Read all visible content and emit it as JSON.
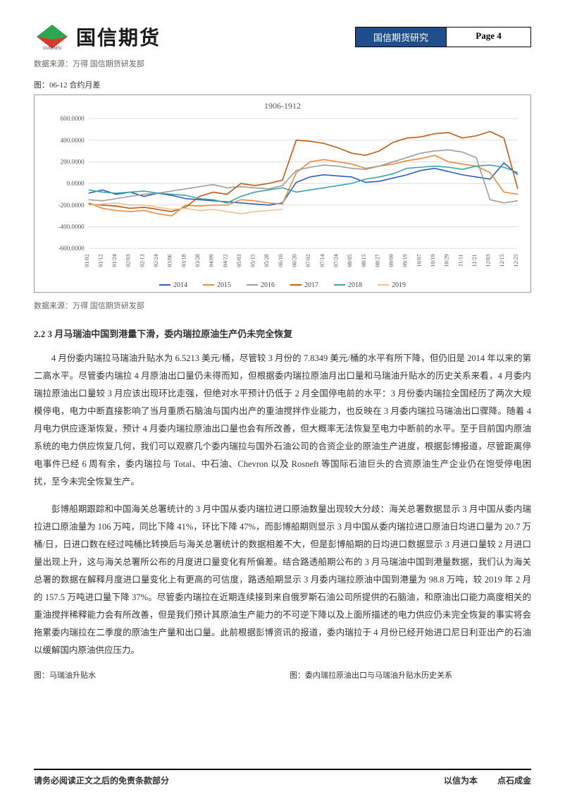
{
  "header": {
    "logo_text": "国信期货",
    "logo_sub": "GUOSEN",
    "research_box": "国信期货研究",
    "page_box": "Page   4"
  },
  "source_label_1": "数据来源：万得 国信期货研发部",
  "source_label_2": "数据来源：万得 国信期货研发部",
  "chart1": {
    "caption": "图：06-12 合约月差",
    "title": "1906-1912",
    "type": "line",
    "background_color": "#ffffff",
    "grid_color": "#dddddd",
    "axis_color": "#bfbfbf",
    "line_width": 1.6,
    "ylim": [
      -600,
      600
    ],
    "ytick_step": 200,
    "ytick_labels": [
      "-600.0000",
      "-400.0000",
      "-200.0000",
      "0.0000",
      "200.0000",
      "400.0000",
      "600.0000"
    ],
    "x_labels": [
      "01/02",
      "01/12",
      "01/24",
      "02/03",
      "02/13",
      "02/24",
      "03/06",
      "03/18",
      "03/28",
      "04/09",
      "04/22",
      "05/03",
      "05/15",
      "05/28",
      "06/10",
      "06/20",
      "07/02",
      "07/14",
      "07/24",
      "08/05",
      "08/15",
      "08/27",
      "09/09",
      "09/19",
      "10/07",
      "10/19",
      "10/29",
      "11/11",
      "11/21",
      "12/03",
      "12/15",
      "12/25"
    ],
    "series": [
      {
        "name": "2014",
        "color": "#2e5fc2",
        "values": [
          -90,
          -60,
          -100,
          -80,
          -120,
          -90,
          -110,
          -140,
          -150,
          -160,
          -170,
          -180,
          -190,
          -200,
          -180,
          10,
          60,
          80,
          70,
          60,
          10,
          20,
          50,
          80,
          120,
          140,
          110,
          80,
          60,
          40,
          190,
          80
        ]
      },
      {
        "name": "2015",
        "color": "#ed8b3b",
        "values": [
          -180,
          -230,
          -250,
          -260,
          -250,
          -280,
          -300,
          -200,
          -210,
          -200,
          -200,
          -150,
          -160,
          -180,
          -190,
          100,
          200,
          220,
          200,
          180,
          140,
          160,
          180,
          210,
          230,
          260,
          200,
          180,
          160,
          100,
          -80,
          -100
        ]
      },
      {
        "name": "2016",
        "color": "#9e9e9e",
        "values": [
          -150,
          -160,
          -140,
          -120,
          -100,
          -90,
          -70,
          -50,
          -30,
          -10,
          -40,
          -30,
          -40,
          -50,
          -20,
          120,
          150,
          170,
          160,
          140,
          130,
          160,
          200,
          240,
          280,
          300,
          310,
          290,
          240,
          -150,
          -180,
          -160
        ]
      },
      {
        "name": "2017",
        "color": "#c55a11",
        "values": [
          -190,
          -200,
          -210,
          -230,
          -220,
          -240,
          -260,
          -220,
          -120,
          -80,
          -100,
          0,
          -20,
          0,
          30,
          400,
          390,
          370,
          330,
          280,
          260,
          300,
          380,
          420,
          430,
          460,
          470,
          420,
          440,
          480,
          420,
          -50
        ]
      },
      {
        "name": "2018",
        "color": "#3aa6a6",
        "values": [
          -60,
          -80,
          -90,
          -80,
          -70,
          -90,
          -100,
          -110,
          -140,
          -150,
          -180,
          -120,
          -80,
          -60,
          -40,
          -80,
          -60,
          -40,
          -20,
          0,
          40,
          60,
          90,
          140,
          150,
          160,
          150,
          130,
          160,
          170,
          150,
          100
        ]
      },
      {
        "name": "2019",
        "color": "#f0c090",
        "values": [
          -200,
          -190,
          -180,
          -200,
          -200,
          -220,
          -240,
          -230,
          -250,
          -240,
          -260,
          -280,
          -260,
          -250,
          -240,
          null,
          null,
          null,
          null,
          null,
          null,
          null,
          null,
          null,
          null,
          null,
          null,
          null,
          null,
          null,
          null,
          null
        ]
      }
    ]
  },
  "section_heading": "2.2 3 月马瑞油中国到港量下滑，委内瑞拉原油生产仍未完全恢复",
  "para1": "4 月份委内瑞拉马瑞油升贴水为 6.5213 美元/桶，尽管较 3 月份的 7.8349 美元/桶的水平有所下降，但仍旧是 2014 年以来的第二高水平。尽管委内瑞拉 4 月原油出口量仍未得而知，但根据委内瑞拉原油月出口量和马瑞油升贴水的历史关系来看，4 月委内瑞拉原油出口量较 3 月应该出现环比走强，但绝对水平预计仍低于 2 月全国停电前的水平：3 月份委内瑞拉全国经历了两次大规模停电，电力中断直接影响了当月重质石脑油与国内出产的重油搅拌作业能力，也反映在 3 月委内瑞拉马瑞油出口骤降。随着 4 月电力供应逐渐恢复，预计 4 月委内瑞拉原油出口量也会有所改善，但大概率无法恢复至电力中断前的水平。至于目前国内原油系统的电力供应恢复几何，我们可以观察几个委内瑞拉与国外石油公司的合资企业的原油生产进度，根据彭博报道，尽管距离停电事件已经 6 周有余，委内瑞拉与 Total、中石油、Chevron 以及 Rosneft 等国际石油巨头的合资原油生产企业仍在饱受停电困扰，至今未完全恢复生产。",
  "para2": "彭博船期跟踪和中国海关总署统计的 3 月中国从委内瑞拉进口原油数量出现较大分歧：海关总署数据显示 3 月中国从委内瑞拉进口原油量为 106 万吨，同比下降 41%，环比下降 47%，而彭博船期则显示 3 月中国从委内瑞拉进口原油日均进口量为 20.7 万桶/日，日进口数在经过吨桶比转换后与海关总署统计的数据相差不大，但是彭博船期的日均进口数据显示 3 月进口量较 2 月进口量出现上升，这与海关总署所公布的月度进口量变化有所偏差。结合路透船期公布的 3 月马瑞油中国到港量数据，我们认为海关总署的数据在解释月度进口量变化上有更高的可信度，路透船期显示 3 月委内瑞拉原油中国到港量为 98.8 万吨，较 2019 年 2 月的 157.5 万吨进口量下降 37%。尽管委内瑞拉在近期连续接到来自俄罗斯石油公司所提供的石脑油，和原油出口能力高度相关的重油搅拌稀释能力会有所改善，但是我们预计其原油生产能力的不可逆下降以及上面所描述的电力供应仍未完全恢复的事实将会拖累委内瑞拉在二季度的原油生产量和出口量。此前根据彭博资讯的报道，委内瑞拉于 4 月份已经开始进口尼日利亚出产的石油以缓解国内原油供应压力。",
  "bottom_captions": {
    "left": "图：马瑞油升贴水",
    "right": "图：委内瑞拉原油出口与马瑞油升贴水历史关系"
  },
  "footer": {
    "left": "请务必阅读正文之后的免责条款部分",
    "right1": "以信为本",
    "right2": "点石成金"
  },
  "colors": {
    "header_blue": "#1f4e8c",
    "logo_green": "#2aa84f",
    "logo_red": "#d93a2b"
  }
}
